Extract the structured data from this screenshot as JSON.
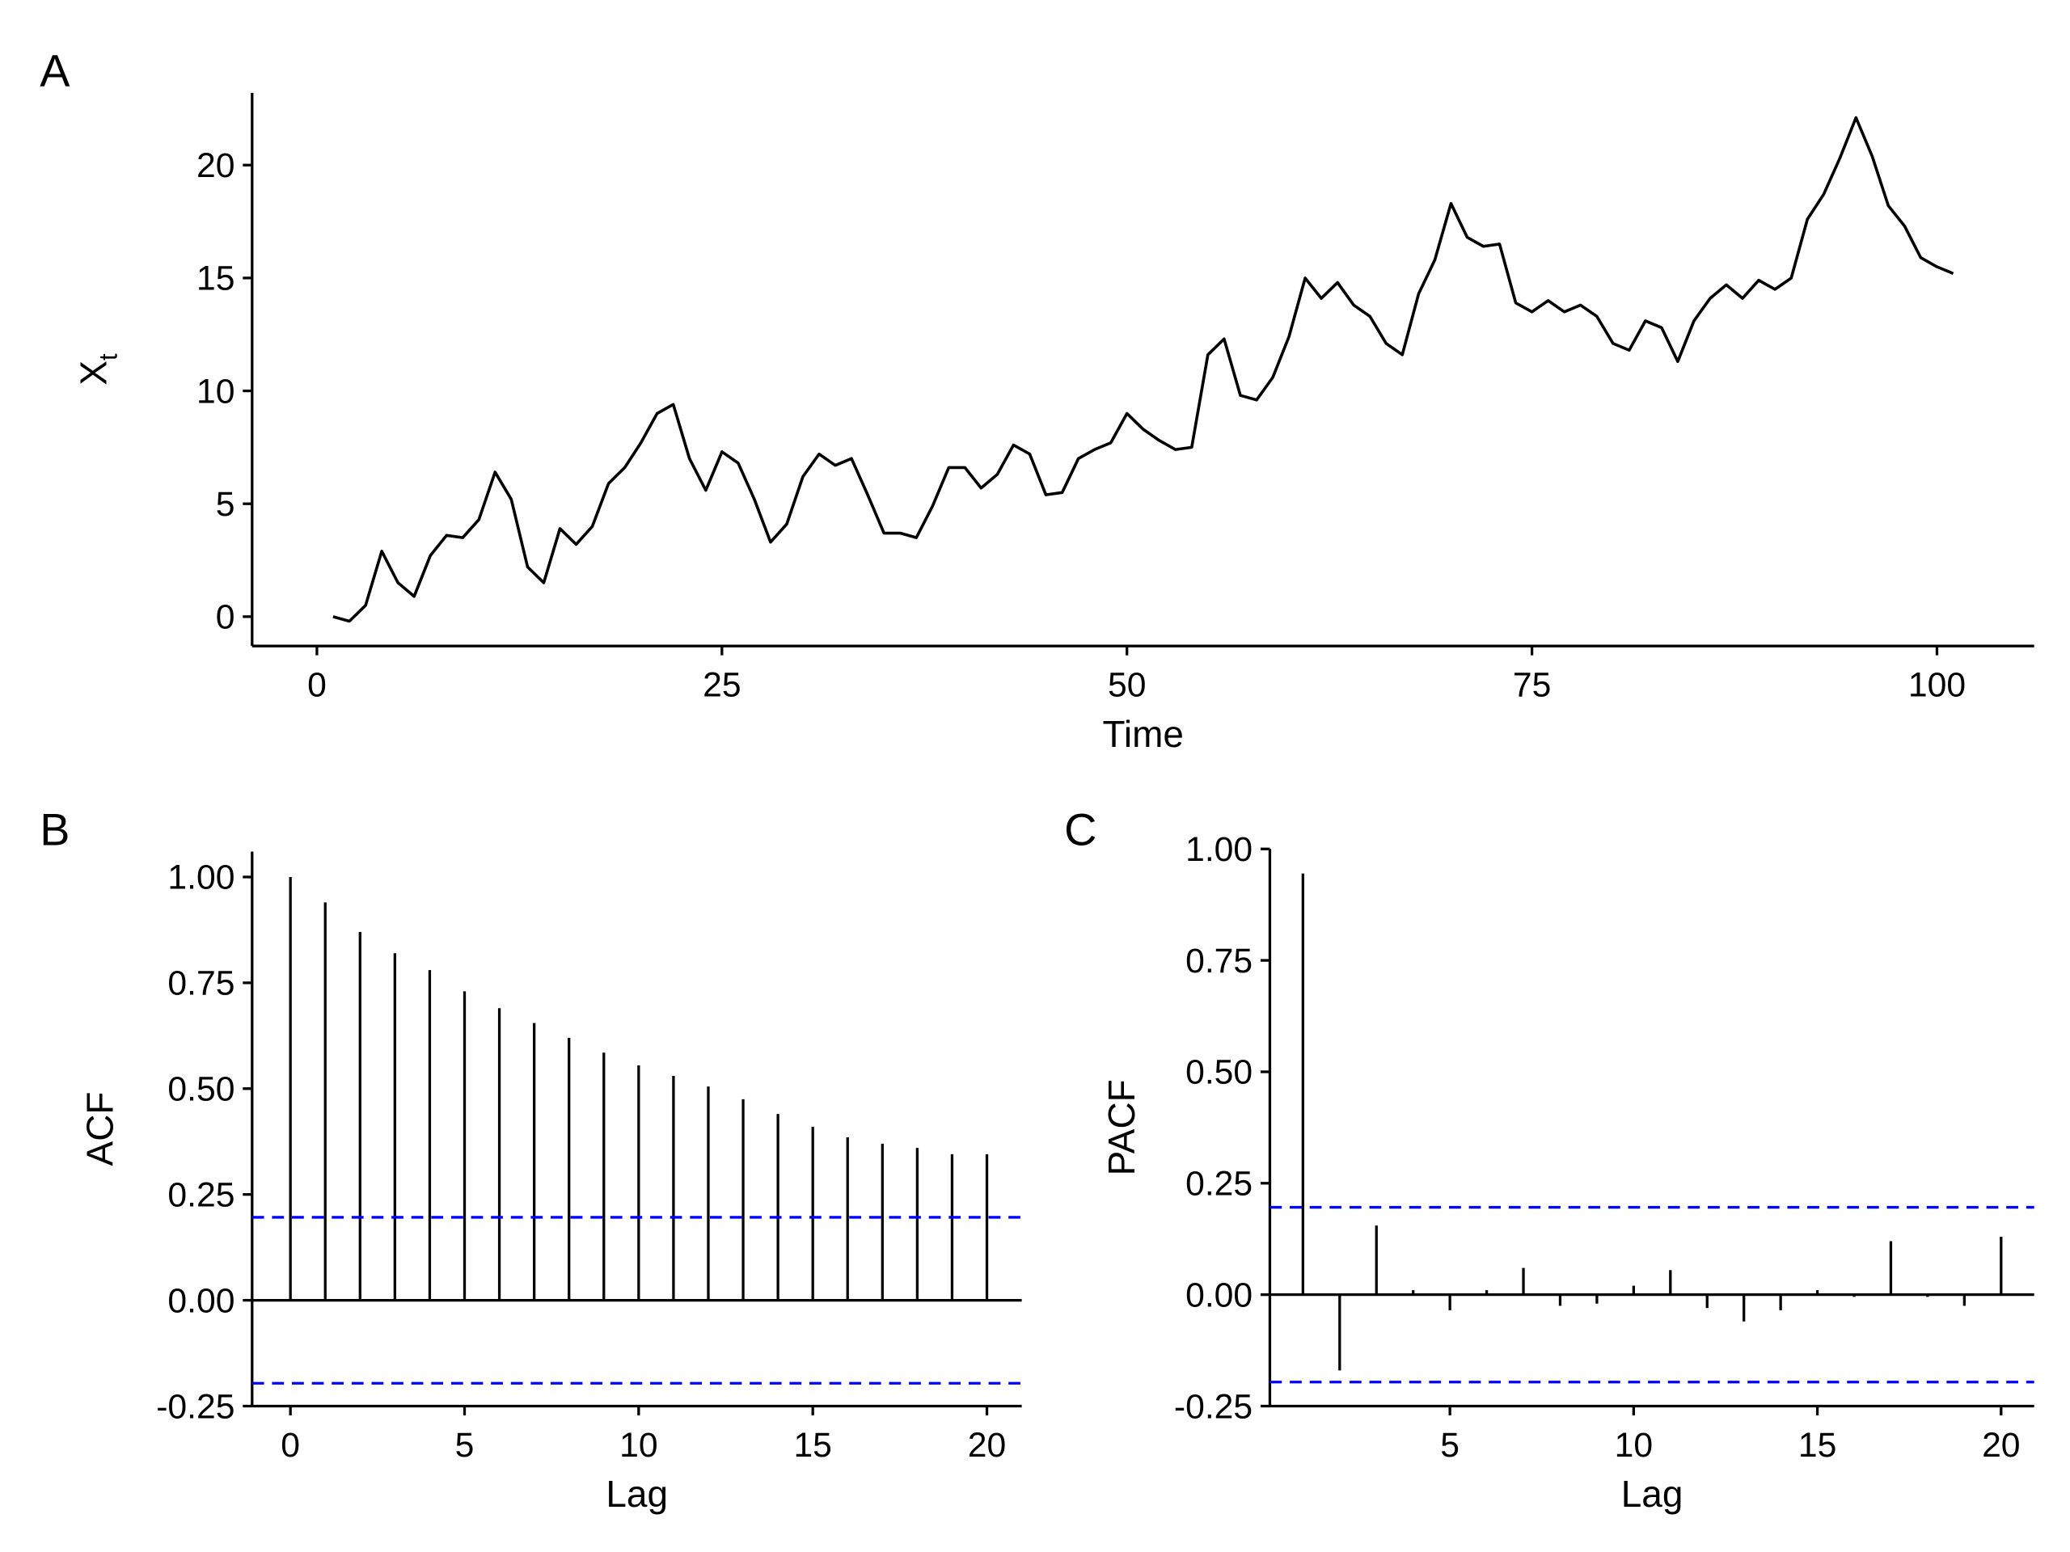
{
  "chart_data": [
    {
      "panel": "A",
      "type": "line",
      "xlabel": "Time",
      "ylabel": "X",
      "ylabel_sub": "t",
      "xlim": [
        -4,
        106
      ],
      "ylim": [
        -1.3,
        23.2
      ],
      "xticks": [
        0,
        25,
        50,
        75,
        100
      ],
      "yticks": [
        0,
        5,
        10,
        15,
        20
      ],
      "x_start": 1,
      "values": [
        0,
        -0.2,
        0.5,
        2.9,
        1.5,
        0.9,
        2.7,
        3.6,
        3.5,
        4.3,
        6.4,
        5.2,
        2.2,
        1.5,
        3.9,
        3.2,
        4.0,
        5.9,
        6.6,
        7.7,
        9.0,
        9.4,
        7.0,
        5.6,
        7.3,
        6.8,
        5.2,
        3.3,
        4.1,
        6.2,
        7.2,
        6.7,
        7.0,
        5.4,
        3.7,
        3.7,
        3.5,
        4.9,
        6.6,
        6.6,
        5.7,
        6.3,
        7.6,
        7.2,
        5.4,
        5.5,
        7.0,
        7.4,
        7.7,
        9.0,
        8.3,
        7.8,
        7.4,
        7.5,
        11.6,
        12.3,
        9.8,
        9.6,
        10.6,
        12.4,
        15.0,
        14.1,
        14.8,
        13.8,
        13.3,
        12.1,
        11.6,
        14.3,
        15.8,
        18.3,
        16.8,
        16.4,
        16.5,
        13.9,
        13.5,
        14.0,
        13.5,
        13.8,
        13.3,
        12.1,
        11.8,
        13.1,
        12.8,
        11.3,
        13.1,
        14.1,
        14.7,
        14.1,
        14.9,
        14.5,
        15.0,
        17.6,
        18.7,
        20.3,
        22.1,
        20.4,
        18.2,
        17.3,
        15.9,
        15.5,
        15.2
      ]
    },
    {
      "panel": "B",
      "type": "bar",
      "xlabel": "Lag",
      "ylabel": "ACF",
      "xlim": [
        -1.1,
        21
      ],
      "ylim": [
        -0.25,
        1.06
      ],
      "xticks": [
        0,
        5,
        10,
        15,
        20
      ],
      "yticks": [
        "-0.25",
        "0.00",
        "0.25",
        "0.50",
        "0.75",
        "1.00"
      ],
      "lags": [
        0,
        1,
        2,
        3,
        4,
        5,
        6,
        7,
        8,
        9,
        10,
        11,
        12,
        13,
        14,
        15,
        16,
        17,
        18,
        19,
        20
      ],
      "values": [
        1.0,
        0.94,
        0.87,
        0.82,
        0.78,
        0.73,
        0.69,
        0.655,
        0.62,
        0.585,
        0.555,
        0.53,
        0.505,
        0.475,
        0.44,
        0.41,
        0.385,
        0.37,
        0.36,
        0.345,
        0.345
      ],
      "conf_bound": 0.196,
      "conf_color": "#0000FF"
    },
    {
      "panel": "C",
      "type": "bar",
      "xlabel": "Lag",
      "ylabel": "PACF",
      "xlim": [
        0.1,
        20.9
      ],
      "ylim": [
        -0.25,
        1.0
      ],
      "xticks": [
        5,
        10,
        15,
        20
      ],
      "yticks": [
        "-0.25",
        "0.00",
        "0.25",
        "0.50",
        "0.75",
        "1.00"
      ],
      "lags": [
        1,
        2,
        3,
        4,
        5,
        6,
        7,
        8,
        9,
        10,
        11,
        12,
        13,
        14,
        15,
        16,
        17,
        18,
        19,
        20
      ],
      "values": [
        0.945,
        -0.17,
        0.155,
        0.01,
        -0.035,
        0.01,
        0.06,
        -0.025,
        -0.02,
        0.02,
        0.055,
        -0.03,
        -0.06,
        -0.035,
        0.01,
        -0.005,
        0.12,
        -0.005,
        -0.025,
        0.13
      ],
      "conf_bound": 0.196,
      "conf_color": "#0000FF"
    }
  ]
}
